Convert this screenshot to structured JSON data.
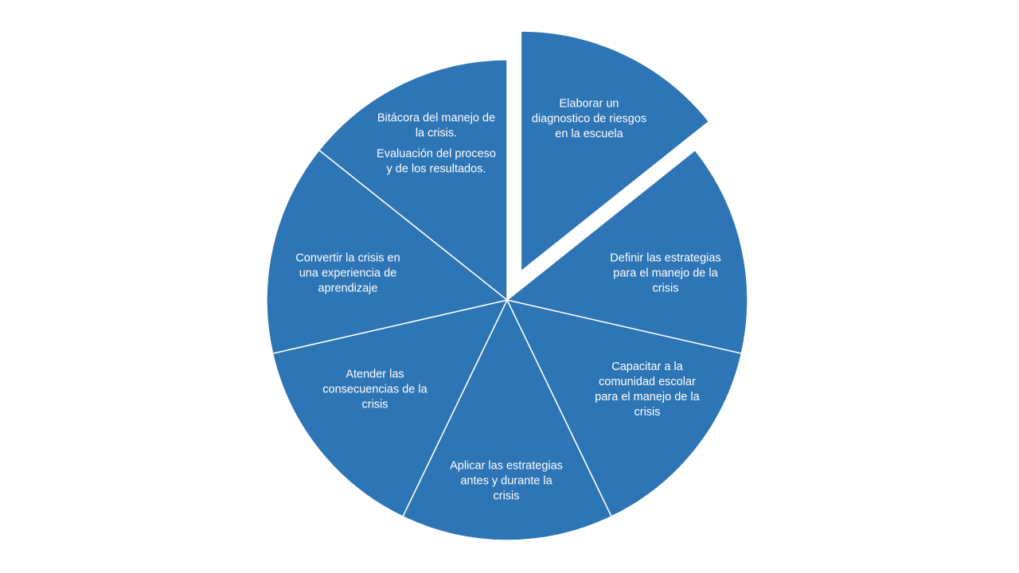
{
  "colors": {
    "segment_fill": "#2E75B6",
    "segment_stroke": "#FFFFFF",
    "text": "#FFFFFF",
    "background": "#FFFFFF"
  },
  "diagram": {
    "type": "exploded-pie-cycle",
    "exploded_segment": 0,
    "segments": [
      {
        "lines": [
          "Elaborar un",
          "diagnostico de riesgos",
          "en la escuela"
        ]
      },
      {
        "lines": [
          "Definir las estrategias",
          "para el manejo de la",
          "crisis"
        ]
      },
      {
        "lines": [
          "Capacitar a la",
          "comunidad escolar",
          "para el manejo de la",
          "crisis"
        ]
      },
      {
        "lines": [
          "Aplicar las estrategias",
          "antes y durante la",
          "crisis"
        ]
      },
      {
        "lines": [
          "Atender las",
          "consecuencias  de la",
          "crisis"
        ]
      },
      {
        "lines": [
          "Convertir la crisis en",
          "una experiencia  de",
          "aprendizaje"
        ]
      },
      {
        "lines": [
          "Bitácora del manejo de",
          "la crisis."
        ],
        "lines2": [
          "Evaluación del proceso",
          "y de los resultados."
        ]
      }
    ]
  }
}
